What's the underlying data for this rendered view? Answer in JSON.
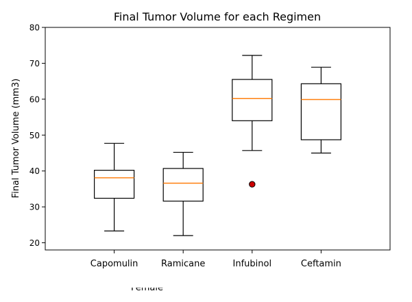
{
  "chart_data": {
    "type": "box",
    "title": "Final Tumor Volume for each Regimen",
    "xlabel": "",
    "ylabel": "Final Tumor Volume (mm3)",
    "ylim": [
      18,
      80
    ],
    "yticks": [
      20,
      30,
      40,
      50,
      60,
      70,
      80
    ],
    "categories": [
      "Capomulin",
      "Ramicane",
      "Infubinol",
      "Ceftamin"
    ],
    "boxes": [
      {
        "category": "Capomulin",
        "whisker_low": 23.3,
        "q1": 32.4,
        "median": 38.1,
        "q3": 40.2,
        "whisker_high": 47.7,
        "outliers": []
      },
      {
        "category": "Ramicane",
        "whisker_low": 22.0,
        "q1": 31.6,
        "median": 36.6,
        "q3": 40.7,
        "whisker_high": 45.2,
        "outliers": []
      },
      {
        "category": "Infubinol",
        "whisker_low": 45.7,
        "q1": 54.0,
        "median": 60.2,
        "q3": 65.5,
        "whisker_high": 72.2,
        "outliers": [
          36.3
        ]
      },
      {
        "category": "Ceftamin",
        "whisker_low": 45.0,
        "q1": 48.7,
        "median": 59.9,
        "q3": 64.3,
        "whisker_high": 68.9,
        "outliers": []
      }
    ],
    "colors": {
      "box": "#000000",
      "median": "#ff7f0e",
      "outlier_fill": "#cc0000",
      "outlier_edge": "#000000"
    },
    "grid": false,
    "legend": "none"
  },
  "page": {
    "cutoff_text": "Female"
  }
}
